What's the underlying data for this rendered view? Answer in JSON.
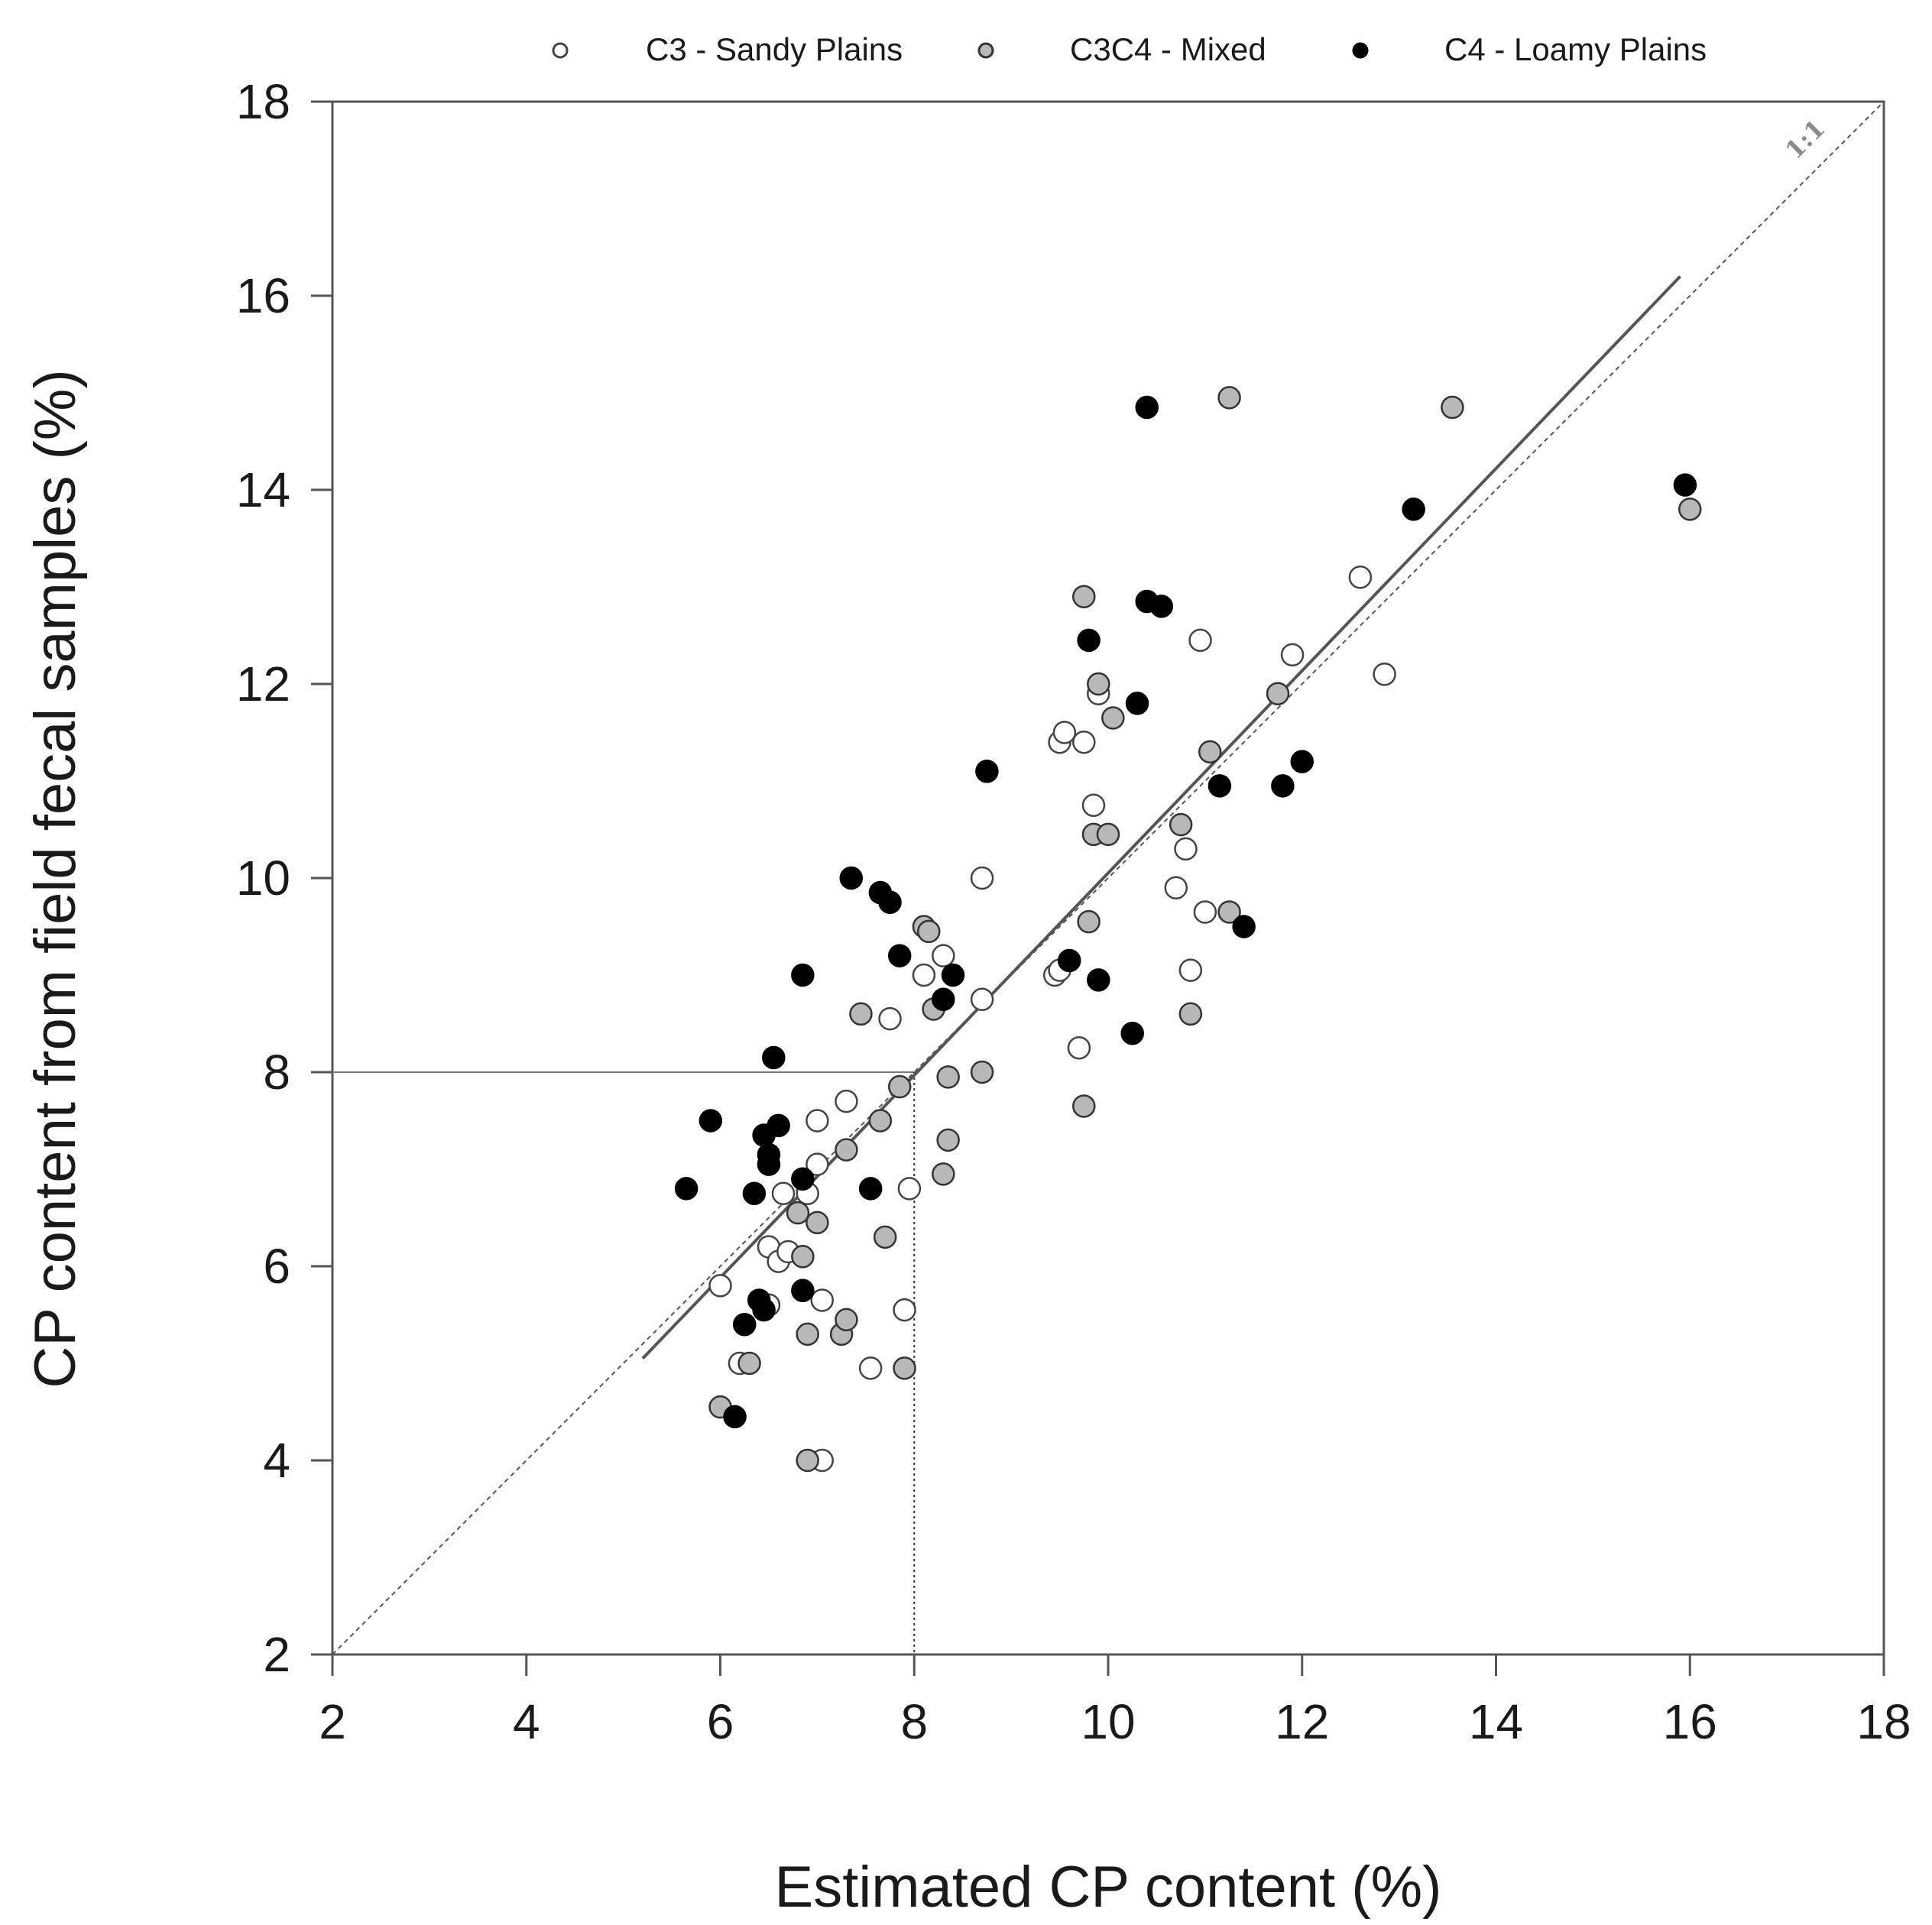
{
  "chart_data": {
    "type": "scatter",
    "title": "",
    "xlabel": "Estimated CP content (%)",
    "ylabel": "CP content from field fecal samples (%)",
    "xlim": [
      2,
      18
    ],
    "ylim": [
      2,
      18
    ],
    "x_ticks": [
      2,
      4,
      6,
      8,
      10,
      12,
      14,
      16,
      18
    ],
    "y_ticks": [
      2,
      4,
      6,
      8,
      10,
      12,
      14,
      16,
      18
    ],
    "grid": false,
    "legend_position": "top",
    "reference_line": {
      "label": "1:1",
      "from": [
        2,
        2
      ],
      "to": [
        18,
        18
      ]
    },
    "regression_line": {
      "from": [
        5.2,
        5.05
      ],
      "to": [
        15.9,
        16.2
      ]
    },
    "guide_lines": {
      "x": 8,
      "y": 8
    },
    "series": [
      {
        "name": "C3 - Sandy Plains",
        "fill": "#ffffff",
        "stroke": "#444444",
        "points": [
          [
            6.0,
            5.8
          ],
          [
            6.2,
            5.0
          ],
          [
            6.5,
            5.6
          ],
          [
            6.5,
            6.2
          ],
          [
            6.6,
            6.05
          ],
          [
            6.65,
            6.75
          ],
          [
            6.7,
            6.15
          ],
          [
            6.9,
            6.75
          ],
          [
            7.0,
            7.05
          ],
          [
            7.0,
            7.5
          ],
          [
            7.05,
            5.65
          ],
          [
            7.05,
            4.0
          ],
          [
            7.3,
            7.7
          ],
          [
            7.55,
            4.95
          ],
          [
            7.75,
            8.55
          ],
          [
            7.9,
            5.55
          ],
          [
            7.95,
            6.8
          ],
          [
            8.1,
            9.0
          ],
          [
            8.3,
            9.2
          ],
          [
            8.7,
            8.75
          ],
          [
            8.7,
            10.0
          ],
          [
            9.45,
            9.0
          ],
          [
            9.5,
            9.05
          ],
          [
            9.5,
            11.4
          ],
          [
            9.55,
            11.5
          ],
          [
            9.7,
            8.25
          ],
          [
            9.75,
            11.4
          ],
          [
            9.85,
            10.75
          ],
          [
            9.9,
            11.9
          ],
          [
            10.7,
            9.9
          ],
          [
            10.8,
            10.3
          ],
          [
            10.85,
            9.05
          ],
          [
            10.95,
            12.45
          ],
          [
            11.0,
            9.65
          ],
          [
            11.9,
            12.3
          ],
          [
            12.6,
            13.1
          ],
          [
            12.85,
            12.1
          ]
        ]
      },
      {
        "name": "C3C4 - Mixed",
        "fill": "#b8b8b8",
        "stroke": "#333333",
        "points": [
          [
            6.0,
            4.55
          ],
          [
            6.3,
            5.0
          ],
          [
            6.8,
            6.55
          ],
          [
            6.85,
            6.1
          ],
          [
            6.9,
            5.3
          ],
          [
            6.9,
            4.0
          ],
          [
            7.0,
            6.45
          ],
          [
            7.25,
            5.3
          ],
          [
            7.3,
            5.45
          ],
          [
            7.3,
            7.2
          ],
          [
            7.45,
            8.6
          ],
          [
            7.65,
            7.5
          ],
          [
            7.7,
            6.3
          ],
          [
            7.85,
            7.85
          ],
          [
            7.9,
            4.95
          ],
          [
            8.1,
            9.5
          ],
          [
            8.15,
            9.45
          ],
          [
            8.2,
            8.65
          ],
          [
            8.3,
            6.95
          ],
          [
            8.35,
            7.95
          ],
          [
            8.35,
            7.3
          ],
          [
            8.7,
            8.0
          ],
          [
            9.75,
            12.9
          ],
          [
            9.75,
            7.65
          ],
          [
            9.8,
            9.55
          ],
          [
            9.85,
            10.45
          ],
          [
            9.9,
            12.0
          ],
          [
            10.0,
            10.45
          ],
          [
            10.05,
            11.65
          ],
          [
            10.75,
            10.55
          ],
          [
            10.85,
            8.6
          ],
          [
            11.05,
            11.3
          ],
          [
            11.25,
            9.65
          ],
          [
            11.25,
            14.95
          ],
          [
            11.75,
            11.9
          ],
          [
            13.55,
            14.85
          ],
          [
            16.0,
            13.8
          ]
        ]
      },
      {
        "name": "C4 - Loamy Plains",
        "fill": "#000000",
        "stroke": "#000000",
        "points": [
          [
            5.65,
            6.8
          ],
          [
            5.9,
            7.5
          ],
          [
            6.15,
            4.45
          ],
          [
            6.25,
            5.4
          ],
          [
            6.35,
            6.75
          ],
          [
            6.4,
            5.65
          ],
          [
            6.45,
            5.55
          ],
          [
            6.45,
            7.35
          ],
          [
            6.5,
            7.15
          ],
          [
            6.5,
            7.05
          ],
          [
            6.55,
            8.15
          ],
          [
            6.6,
            7.45
          ],
          [
            6.85,
            9.0
          ],
          [
            6.85,
            6.9
          ],
          [
            6.85,
            5.75
          ],
          [
            7.35,
            10.0
          ],
          [
            7.55,
            6.8
          ],
          [
            7.65,
            9.85
          ],
          [
            7.75,
            9.75
          ],
          [
            7.85,
            9.2
          ],
          [
            8.3,
            8.75
          ],
          [
            8.4,
            9.0
          ],
          [
            8.75,
            11.1
          ],
          [
            9.6,
            9.15
          ],
          [
            9.8,
            12.45
          ],
          [
            9.9,
            8.95
          ],
          [
            10.25,
            8.4
          ],
          [
            10.3,
            11.8
          ],
          [
            10.4,
            12.85
          ],
          [
            10.4,
            14.85
          ],
          [
            10.55,
            12.8
          ],
          [
            11.15,
            10.95
          ],
          [
            11.4,
            9.5
          ],
          [
            11.8,
            10.95
          ],
          [
            12.0,
            11.2
          ],
          [
            13.15,
            13.8
          ],
          [
            15.95,
            14.05
          ]
        ]
      }
    ]
  }
}
